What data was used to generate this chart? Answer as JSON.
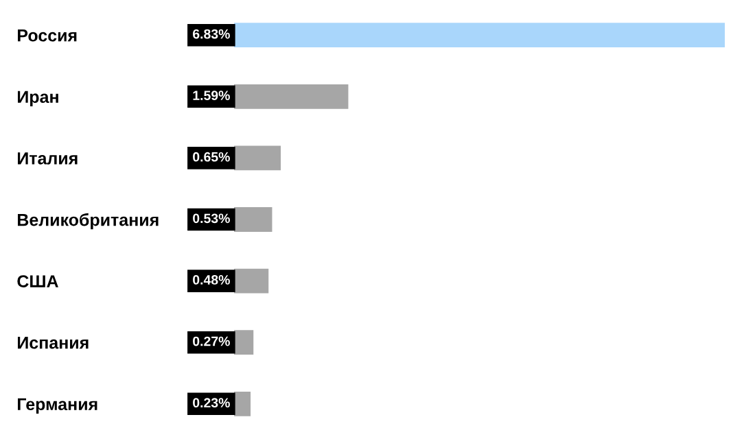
{
  "chart_data": {
    "type": "bar",
    "orientation": "horizontal",
    "categories": [
      "Россия",
      "Иран",
      "Италия",
      "Великобритания",
      "США",
      "Испания",
      "Германия"
    ],
    "values": [
      6.83,
      1.59,
      0.65,
      0.53,
      0.48,
      0.27,
      0.23
    ],
    "colors": [
      "#a9d6fb",
      "#a6a6a6",
      "#a6a6a6",
      "#a6a6a6",
      "#a6a6a6",
      "#a6a6a6",
      "#a6a6a6"
    ],
    "value_labels": [
      "6.83%",
      "1.59%",
      "0.65%",
      "0.53%",
      "0.48%",
      "0.27%",
      "0.23%"
    ]
  }
}
